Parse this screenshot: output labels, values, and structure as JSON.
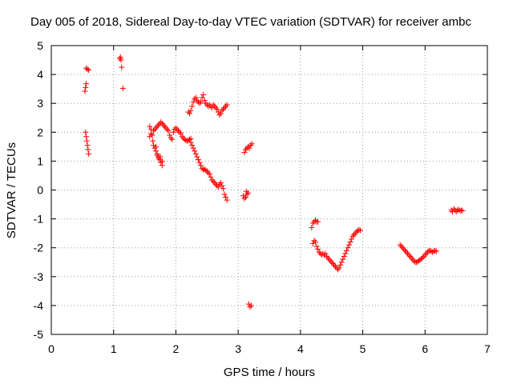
{
  "chart_data": {
    "type": "scatter",
    "title": "Day 005 of 2018, Sidereal Day-to-day VTEC variation (SDTVAR) for receiver ambc",
    "xlabel": "GPS time / hours",
    "ylabel": "SDTVAR / TECUs",
    "xlim": [
      0,
      7
    ],
    "ylim": [
      -5,
      5
    ],
    "x_ticks": [
      0,
      1,
      2,
      3,
      4,
      5,
      6,
      7
    ],
    "y_ticks": [
      -5,
      -4,
      -3,
      -2,
      -1,
      0,
      1,
      2,
      3,
      4,
      5
    ],
    "grid": true,
    "marker": "+",
    "marker_color": "#ff0000",
    "series": [
      {
        "name": "SDTVAR",
        "points": [
          [
            0.54,
            3.42
          ],
          [
            0.55,
            3.55
          ],
          [
            0.56,
            3.68
          ],
          [
            0.55,
            2.0
          ],
          [
            0.56,
            1.85
          ],
          [
            0.57,
            1.7
          ],
          [
            0.58,
            1.55
          ],
          [
            0.59,
            1.4
          ],
          [
            0.6,
            1.25
          ],
          [
            0.56,
            4.22
          ],
          [
            0.58,
            4.18
          ],
          [
            0.6,
            4.15
          ],
          [
            1.1,
            4.55
          ],
          [
            1.11,
            4.6
          ],
          [
            1.12,
            4.5
          ],
          [
            1.13,
            4.25
          ],
          [
            1.15,
            3.52
          ],
          [
            1.58,
            1.85
          ],
          [
            1.6,
            1.95
          ],
          [
            1.62,
            1.9
          ],
          [
            1.64,
            2.05
          ],
          [
            1.66,
            2.1
          ],
          [
            1.68,
            2.15
          ],
          [
            1.7,
            2.2
          ],
          [
            1.72,
            2.25
          ],
          [
            1.74,
            2.3
          ],
          [
            1.76,
            2.35
          ],
          [
            1.78,
            2.3
          ],
          [
            1.8,
            2.25
          ],
          [
            1.82,
            2.2
          ],
          [
            1.84,
            2.15
          ],
          [
            1.86,
            2.1
          ],
          [
            1.88,
            2.05
          ],
          [
            1.58,
            2.2
          ],
          [
            1.6,
            2.1
          ],
          [
            1.62,
            1.9
          ],
          [
            1.63,
            1.7
          ],
          [
            1.64,
            1.55
          ],
          [
            1.66,
            1.45
          ],
          [
            1.68,
            1.35
          ],
          [
            1.7,
            1.25
          ],
          [
            1.72,
            1.15
          ],
          [
            1.74,
            1.05
          ],
          [
            1.76,
            0.95
          ],
          [
            1.78,
            0.85
          ],
          [
            1.68,
            1.5
          ],
          [
            1.7,
            1.2
          ],
          [
            1.72,
            1.1
          ],
          [
            1.75,
            1.15
          ],
          [
            1.78,
            1.0
          ],
          [
            1.9,
            1.9
          ],
          [
            1.92,
            1.8
          ],
          [
            1.94,
            1.75
          ],
          [
            1.96,
            2.0
          ],
          [
            1.98,
            2.1
          ],
          [
            2.0,
            2.15
          ],
          [
            2.02,
            2.1
          ],
          [
            2.04,
            2.05
          ],
          [
            2.06,
            2.0
          ],
          [
            2.08,
            1.95
          ],
          [
            2.1,
            1.85
          ],
          [
            2.12,
            1.8
          ],
          [
            2.14,
            1.75
          ],
          [
            2.16,
            1.72
          ],
          [
            2.18,
            1.7
          ],
          [
            2.2,
            1.72
          ],
          [
            2.22,
            1.75
          ],
          [
            2.24,
            1.78
          ],
          [
            2.2,
            2.7
          ],
          [
            2.22,
            2.65
          ],
          [
            2.24,
            2.75
          ],
          [
            2.26,
            2.9
          ],
          [
            2.28,
            3.05
          ],
          [
            2.3,
            3.15
          ],
          [
            2.32,
            3.2
          ],
          [
            2.34,
            3.1
          ],
          [
            2.36,
            3.05
          ],
          [
            2.38,
            3.0
          ],
          [
            2.4,
            3.05
          ],
          [
            2.42,
            3.2
          ],
          [
            2.44,
            3.3
          ],
          [
            2.46,
            3.1
          ],
          [
            2.48,
            3.0
          ],
          [
            2.5,
            2.95
          ],
          [
            2.52,
            2.9
          ],
          [
            2.54,
            2.95
          ],
          [
            2.56,
            2.9
          ],
          [
            2.58,
            2.85
          ],
          [
            2.6,
            2.95
          ],
          [
            2.62,
            2.9
          ],
          [
            2.64,
            2.85
          ],
          [
            2.66,
            2.8
          ],
          [
            2.68,
            2.7
          ],
          [
            2.7,
            2.6
          ],
          [
            2.72,
            2.65
          ],
          [
            2.74,
            2.75
          ],
          [
            2.76,
            2.8
          ],
          [
            2.78,
            2.85
          ],
          [
            2.8,
            2.9
          ],
          [
            2.82,
            2.95
          ],
          [
            2.24,
            1.65
          ],
          [
            2.26,
            1.55
          ],
          [
            2.28,
            1.45
          ],
          [
            2.3,
            1.35
          ],
          [
            2.32,
            1.25
          ],
          [
            2.34,
            1.15
          ],
          [
            2.36,
            1.05
          ],
          [
            2.38,
            0.95
          ],
          [
            2.4,
            0.85
          ],
          [
            2.42,
            0.75
          ],
          [
            2.44,
            0.7
          ],
          [
            2.46,
            0.72
          ],
          [
            2.48,
            0.68
          ],
          [
            2.5,
            0.65
          ],
          [
            2.52,
            0.6
          ],
          [
            2.54,
            0.55
          ],
          [
            2.56,
            0.45
          ],
          [
            2.58,
            0.35
          ],
          [
            2.6,
            0.3
          ],
          [
            2.62,
            0.25
          ],
          [
            2.64,
            0.2
          ],
          [
            2.66,
            0.15
          ],
          [
            2.68,
            0.1
          ],
          [
            2.7,
            0.2
          ],
          [
            2.72,
            0.25
          ],
          [
            2.74,
            0.15
          ],
          [
            2.76,
            0.05
          ],
          [
            2.78,
            -0.15
          ],
          [
            2.8,
            -0.25
          ],
          [
            2.82,
            -0.35
          ],
          [
            3.08,
            -0.2
          ],
          [
            3.1,
            -0.3
          ],
          [
            3.12,
            -0.25
          ],
          [
            3.14,
            -0.15
          ],
          [
            3.16,
            -0.1
          ],
          [
            3.1,
            1.3
          ],
          [
            3.12,
            1.4
          ],
          [
            3.14,
            1.45
          ],
          [
            3.16,
            1.5
          ],
          [
            3.18,
            1.45
          ],
          [
            3.2,
            1.55
          ],
          [
            3.22,
            1.6
          ],
          [
            3.13,
            -0.05
          ],
          [
            3.17,
            -3.95
          ],
          [
            3.19,
            -4.05
          ],
          [
            3.21,
            -4.0
          ],
          [
            4.18,
            -1.3
          ],
          [
            4.2,
            -1.15
          ],
          [
            4.22,
            -1.1
          ],
          [
            4.24,
            -1.05
          ],
          [
            4.26,
            -1.1
          ],
          [
            4.28,
            -1.1
          ],
          [
            4.2,
            -1.85
          ],
          [
            4.22,
            -1.75
          ],
          [
            4.24,
            -1.8
          ],
          [
            4.26,
            -1.95
          ],
          [
            4.28,
            -2.05
          ],
          [
            4.3,
            -2.15
          ],
          [
            4.32,
            -2.2
          ],
          [
            4.34,
            -2.25
          ],
          [
            4.36,
            -2.2
          ],
          [
            4.38,
            -2.25
          ],
          [
            4.4,
            -2.2
          ],
          [
            4.42,
            -2.3
          ],
          [
            4.44,
            -2.35
          ],
          [
            4.46,
            -2.4
          ],
          [
            4.48,
            -2.45
          ],
          [
            4.5,
            -2.5
          ],
          [
            4.52,
            -2.55
          ],
          [
            4.54,
            -2.6
          ],
          [
            4.56,
            -2.65
          ],
          [
            4.58,
            -2.7
          ],
          [
            4.6,
            -2.75
          ],
          [
            4.62,
            -2.7
          ],
          [
            4.64,
            -2.6
          ],
          [
            4.66,
            -2.5
          ],
          [
            4.68,
            -2.4
          ],
          [
            4.7,
            -2.3
          ],
          [
            4.72,
            -2.2
          ],
          [
            4.74,
            -2.1
          ],
          [
            4.76,
            -2.0
          ],
          [
            4.78,
            -1.9
          ],
          [
            4.8,
            -1.8
          ],
          [
            4.82,
            -1.7
          ],
          [
            4.84,
            -1.6
          ],
          [
            4.86,
            -1.55
          ],
          [
            4.88,
            -1.5
          ],
          [
            4.9,
            -1.45
          ],
          [
            4.92,
            -1.4
          ],
          [
            4.94,
            -1.38
          ],
          [
            4.96,
            -1.4
          ],
          [
            5.6,
            -1.9
          ],
          [
            5.62,
            -1.95
          ],
          [
            5.64,
            -2.0
          ],
          [
            5.66,
            -2.05
          ],
          [
            5.68,
            -2.1
          ],
          [
            5.7,
            -2.15
          ],
          [
            5.72,
            -2.2
          ],
          [
            5.74,
            -2.25
          ],
          [
            5.76,
            -2.3
          ],
          [
            5.78,
            -2.35
          ],
          [
            5.8,
            -2.4
          ],
          [
            5.82,
            -2.45
          ],
          [
            5.84,
            -2.5
          ],
          [
            5.86,
            -2.5
          ],
          [
            5.88,
            -2.48
          ],
          [
            5.9,
            -2.45
          ],
          [
            5.92,
            -2.42
          ],
          [
            5.94,
            -2.38
          ],
          [
            5.96,
            -2.35
          ],
          [
            5.98,
            -2.3
          ],
          [
            6.0,
            -2.25
          ],
          [
            6.02,
            -2.2
          ],
          [
            6.04,
            -2.15
          ],
          [
            6.06,
            -2.1
          ],
          [
            6.08,
            -2.1
          ],
          [
            6.1,
            -2.12
          ],
          [
            6.12,
            -2.15
          ],
          [
            6.14,
            -2.12
          ],
          [
            6.16,
            -2.1
          ],
          [
            6.18,
            -2.12
          ],
          [
            6.42,
            -0.7
          ],
          [
            6.44,
            -0.75
          ],
          [
            6.46,
            -0.65
          ],
          [
            6.48,
            -0.7
          ],
          [
            6.5,
            -0.75
          ],
          [
            6.52,
            -0.7
          ],
          [
            6.54,
            -0.68
          ],
          [
            6.56,
            -0.72
          ],
          [
            6.58,
            -0.7
          ],
          [
            6.6,
            -0.72
          ]
        ]
      }
    ]
  }
}
